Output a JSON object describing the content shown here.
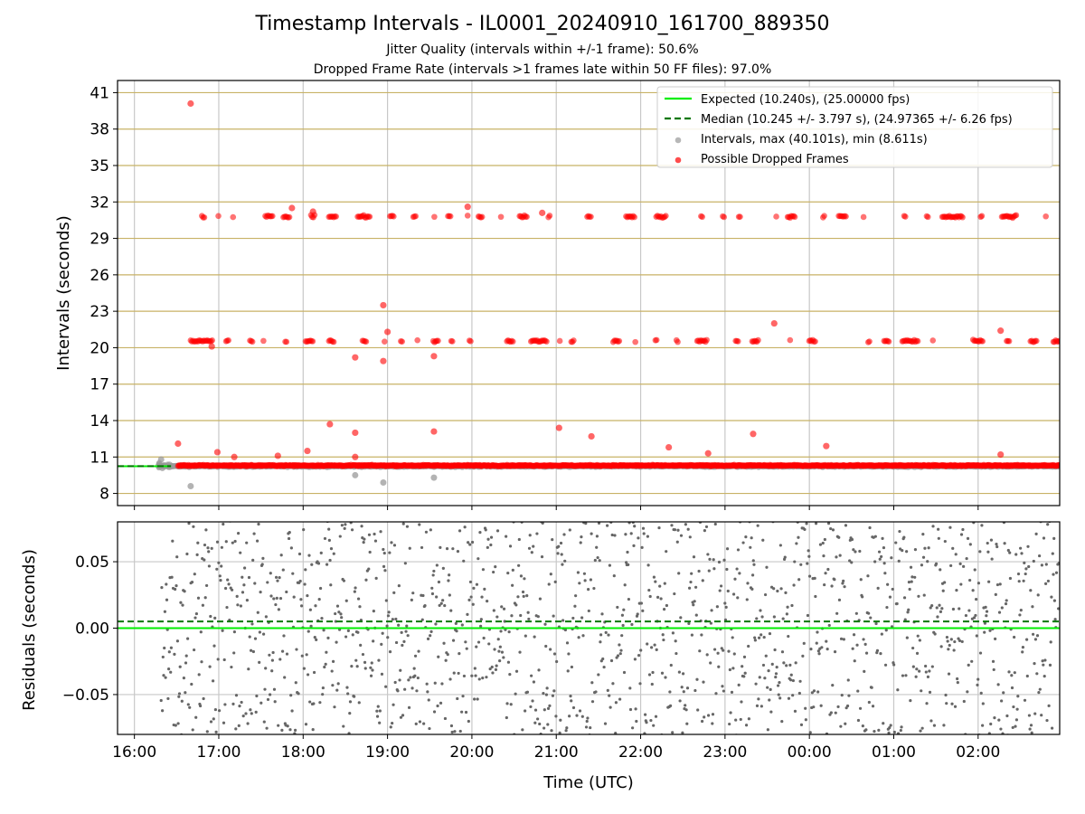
{
  "title": "Timestamp Intervals - IL0001_20240910_161700_889350",
  "subtitle_jitter": "Jitter Quality (intervals within +/-1 frame): 50.6%",
  "subtitle_dropped": "Dropped Frame Rate (intervals >1 frames late within 50 FF files): 97.0%",
  "colors": {
    "expected": "#00ee00",
    "median": "#007700",
    "intervals": "#999999",
    "dropped": "#ff0000",
    "hgrid": "#c8b266",
    "vgrid": "#c8c8c8",
    "residuals": "#666666"
  },
  "chart_data": [
    {
      "type": "scatter",
      "title": "Timestamp Intervals - IL0001_20240910_161700_889350",
      "ylabel": "Intervals (seconds)",
      "xlabel": "",
      "xlim": [
        "15:48",
        "02:58"
      ],
      "ylim": [
        7,
        42
      ],
      "yticks": [
        8,
        11,
        14,
        17,
        20,
        23,
        26,
        29,
        32,
        35,
        38,
        41
      ],
      "ytick_labels": [
        "8",
        "11",
        "14",
        "17",
        "20",
        "23",
        "26",
        "29",
        "32",
        "35",
        "38",
        "41"
      ],
      "grid": true,
      "legend_position": "top-right",
      "legend": [
        {
          "label": "Expected (10.240s), (25.00000 fps)",
          "kind": "line",
          "color": "#00ee00"
        },
        {
          "label": "Median (10.245 +/- 3.797 s), (24.97365 +/- 6.26 fps)",
          "kind": "dashed",
          "color": "#007700"
        },
        {
          "label": "Intervals, max (40.101s), min (8.611s)",
          "kind": "point",
          "color": "#999999"
        },
        {
          "label": "Possible Dropped Frames",
          "kind": "point",
          "color": "#ff0000"
        }
      ],
      "expected_line": {
        "y": 10.24,
        "x_start": "15:48",
        "x_end": "16:26"
      },
      "median_line": {
        "y": 10.245,
        "x_start": "15:48",
        "x_end": "16:26"
      },
      "bands": [
        {
          "name": "intervals",
          "center": 10.24,
          "x_start": "16:17",
          "x_end": "02:58"
        },
        {
          "name": "dropped-1",
          "center": 10.3,
          "x_start": "16:31",
          "x_end": "02:58"
        },
        {
          "name": "dropped-2",
          "center": 20.55,
          "x_start": "16:40",
          "x_end": "02:58"
        },
        {
          "name": "dropped-3",
          "center": 30.8,
          "x_start": "16:48",
          "x_end": "02:58"
        }
      ],
      "gray_outliers": [
        {
          "x": "16:40",
          "y": 8.6
        },
        {
          "x": "18:37",
          "y": 9.5
        },
        {
          "x": "18:57",
          "y": 8.9
        },
        {
          "x": "19:33",
          "y": 9.3
        },
        {
          "x": "16:19",
          "y": 10.8
        }
      ],
      "red_outliers": [
        {
          "x": "16:40",
          "y": 40.1
        },
        {
          "x": "18:57",
          "y": 23.5
        },
        {
          "x": "19:00",
          "y": 21.3
        },
        {
          "x": "23:35",
          "y": 22.0
        },
        {
          "x": "02:16",
          "y": 21.4
        },
        {
          "x": "18:37",
          "y": 19.2
        },
        {
          "x": "18:57",
          "y": 18.9
        },
        {
          "x": "19:33",
          "y": 19.3
        },
        {
          "x": "16:55",
          "y": 20.1
        },
        {
          "x": "17:52",
          "y": 31.5
        },
        {
          "x": "18:07",
          "y": 31.2
        },
        {
          "x": "19:57",
          "y": 31.6
        },
        {
          "x": "20:50",
          "y": 31.1
        },
        {
          "x": "18:19",
          "y": 13.7
        },
        {
          "x": "18:37",
          "y": 13.0
        },
        {
          "x": "19:33",
          "y": 13.1
        },
        {
          "x": "21:02",
          "y": 13.4
        },
        {
          "x": "21:25",
          "y": 12.7
        },
        {
          "x": "22:20",
          "y": 11.8
        },
        {
          "x": "22:48",
          "y": 11.3
        },
        {
          "x": "23:20",
          "y": 12.9
        },
        {
          "x": "00:12",
          "y": 11.9
        },
        {
          "x": "16:31",
          "y": 12.1
        },
        {
          "x": "16:59",
          "y": 11.4
        },
        {
          "x": "17:11",
          "y": 11.0
        },
        {
          "x": "17:42",
          "y": 11.1
        },
        {
          "x": "18:03",
          "y": 11.5
        },
        {
          "x": "18:37",
          "y": 11.0
        },
        {
          "x": "02:16",
          "y": 11.2
        }
      ]
    },
    {
      "type": "scatter",
      "title": "",
      "ylabel": "Residuals (seconds)",
      "xlabel": "Time (UTC)",
      "xlim": [
        "15:48",
        "02:58"
      ],
      "ylim": [
        -0.08,
        0.08
      ],
      "yticks": [
        -0.05,
        0.0,
        0.05
      ],
      "ytick_labels": [
        "−0.05",
        "0.00",
        "0.05"
      ],
      "xticks": [
        "16:00",
        "17:00",
        "18:00",
        "19:00",
        "20:00",
        "21:00",
        "22:00",
        "23:00",
        "00:00",
        "01:00",
        "02:00"
      ],
      "grid": true,
      "expected_residual": 0.0,
      "median_residual": 0.005,
      "residual_x_start": "16:19",
      "residual_x_end": "02:58",
      "residual_spread": 0.08
    }
  ]
}
